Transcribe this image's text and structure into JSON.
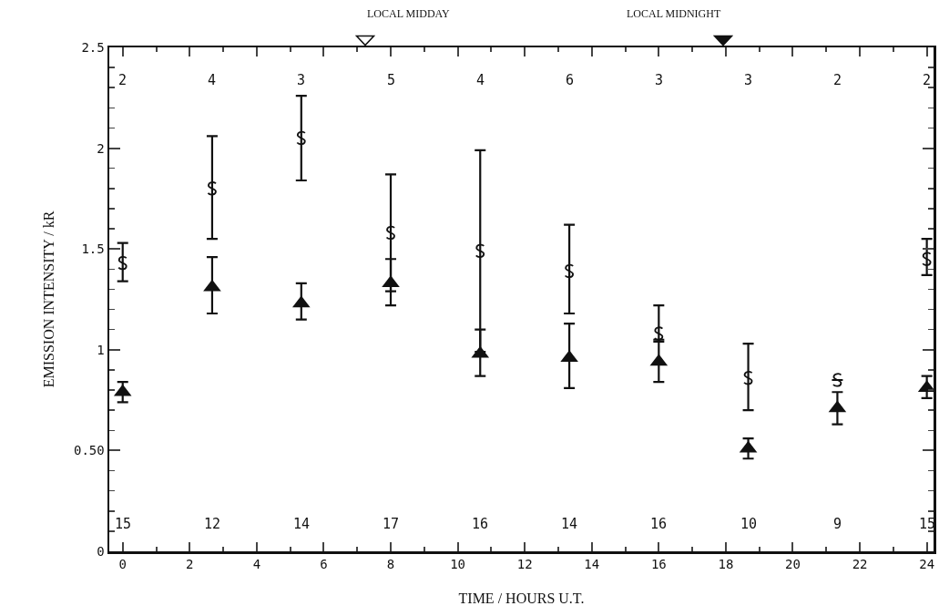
{
  "chart_data": {
    "type": "scatter",
    "xlabel": "TIME / HOURS U.T.",
    "ylabel": "EMISSION INTENSITY / kR",
    "x": [
      0,
      2.67,
      5.33,
      8,
      10.67,
      13.33,
      16,
      18.67,
      21.33,
      24
    ],
    "series": [
      {
        "color": "#111111",
        "marker": "triangle",
        "values": [
          0.79,
          1.31,
          1.23,
          1.33,
          0.98,
          0.96,
          0.94,
          0.51,
          0.71,
          0.81
        ],
        "errors": [
          [
            0.74,
            0.84
          ],
          [
            1.18,
            1.46
          ],
          [
            1.15,
            1.33
          ],
          [
            1.22,
            1.45
          ],
          [
            0.87,
            1.1
          ],
          [
            0.81,
            1.13
          ],
          [
            0.84,
            1.05
          ],
          [
            0.46,
            0.56
          ],
          [
            0.63,
            0.79
          ],
          [
            0.76,
            0.87
          ]
        ]
      },
      {
        "color": "#111111",
        "values": [
          1.43,
          1.8,
          2.05,
          1.58,
          1.49,
          1.39,
          1.08,
          0.86,
          0.85,
          1.45
        ],
        "errors": [
          [
            1.34,
            1.53
          ],
          [
            1.55,
            2.06
          ],
          [
            1.84,
            2.26
          ],
          [
            1.29,
            1.87
          ],
          [
            0.99,
            1.99
          ],
          [
            1.18,
            1.62
          ],
          [
            1.04,
            1.22
          ],
          [
            0.7,
            1.03
          ],
          null,
          [
            1.37,
            1.55
          ]
        ]
      }
    ],
    "xlim": [
      -0.4,
      24.2
    ],
    "xticks": [
      0,
      2,
      4,
      6,
      8,
      10,
      12,
      14,
      16,
      18,
      20,
      22,
      24
    ],
    "ylim": [
      0,
      2.5
    ],
    "yticks": [
      0,
      {
        "value": 0.5,
        "label": "0.50"
      },
      1,
      1.5,
      2,
      2.5
    ],
    "grid": false,
    "annotations": [
      "LOCAL MIDDAY",
      "LOCAL MIDNIGHT",
      "2",
      "4",
      "3",
      "5",
      "4",
      "6",
      "3",
      "3",
      "2",
      "2",
      "15",
      "12",
      "14",
      "17",
      "16",
      "14",
      "16",
      "10",
      "9",
      "15"
    ]
  }
}
